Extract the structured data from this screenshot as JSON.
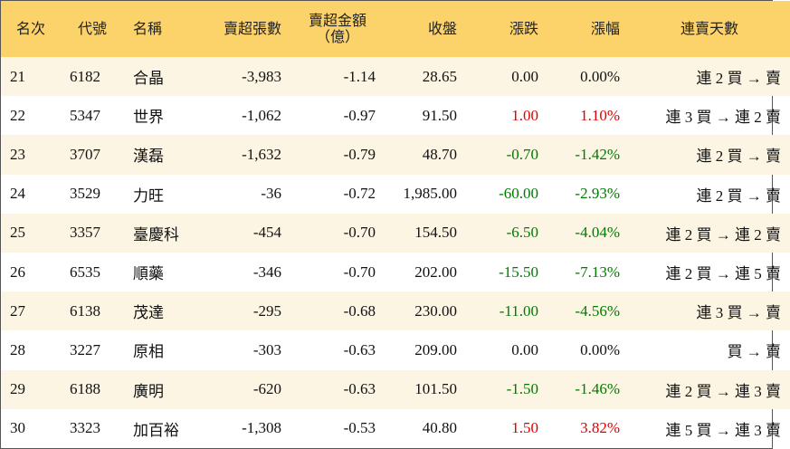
{
  "table": {
    "header": [
      "名次",
      "代號",
      "名稱",
      "賣超張數",
      [
        "賣超金額",
        "（億）"
      ],
      "收盤",
      "漲跌",
      "漲幅",
      "連賣天數"
    ],
    "rows": [
      [
        "21",
        "6182",
        "合晶",
        "-3,983",
        "-1.14",
        "28.65",
        "0.00",
        "0.00%",
        "連 2 買 → 賣"
      ],
      [
        "22",
        "5347",
        "世界",
        "-1,062",
        "-0.97",
        "91.50",
        "1.00",
        "1.10%",
        "連 3 買 → 連 2 賣"
      ],
      [
        "23",
        "3707",
        "漢磊",
        "-1,632",
        "-0.79",
        "48.70",
        "-0.70",
        "-1.42%",
        "連 2 買 → 賣"
      ],
      [
        "24",
        "3529",
        "力旺",
        "-36",
        "-0.72",
        "1,985.00",
        "-60.00",
        "-2.93%",
        "連 2 買 → 賣"
      ],
      [
        "25",
        "3357",
        "臺慶科",
        "-454",
        "-0.70",
        "154.50",
        "-6.50",
        "-4.04%",
        "連 2 買 → 連 2 賣"
      ],
      [
        "26",
        "6535",
        "順藥",
        "-346",
        "-0.70",
        "202.00",
        "-15.50",
        "-7.13%",
        "連 2 買 → 連 5 賣"
      ],
      [
        "27",
        "6138",
        "茂達",
        "-295",
        "-0.68",
        "230.00",
        "-11.00",
        "-4.56%",
        "連 3 買 → 賣"
      ],
      [
        "28",
        "3227",
        "原相",
        "-303",
        "-0.63",
        "209.00",
        "0.00",
        "0.00%",
        "買 → 賣"
      ],
      [
        "29",
        "6188",
        "廣明",
        "-620",
        "-0.63",
        "101.50",
        "-1.50",
        "-1.46%",
        "連 2 買 → 連 3 賣"
      ],
      [
        "30",
        "3323",
        "加百裕",
        "-1,308",
        "-0.53",
        "40.80",
        "1.50",
        "3.82%",
        "連 5 買 → 連 3 賣"
      ]
    ]
  }
}
